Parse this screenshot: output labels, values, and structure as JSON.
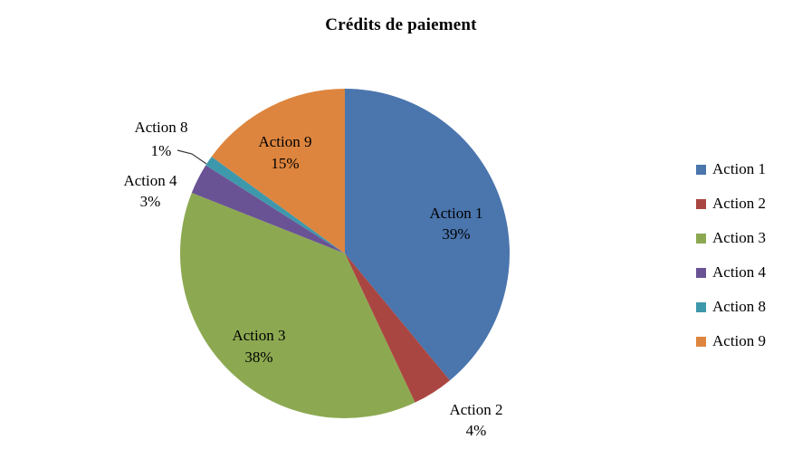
{
  "page": {
    "background": "#ffffff"
  },
  "chart_data": {
    "type": "pie",
    "title": "Crédits de paiement",
    "value_format": "percent",
    "total": 100,
    "start_angle_deg": 0,
    "direction": "clockwise",
    "slices": [
      {
        "label": "Action 1",
        "value": 39,
        "color": "#4A75AD",
        "label_placement": "inside"
      },
      {
        "label": "Action 2",
        "value": 4,
        "color": "#AA4642",
        "label_placement": "outside"
      },
      {
        "label": "Action 3",
        "value": 38,
        "color": "#8CA951",
        "label_placement": "inside"
      },
      {
        "label": "Action 4",
        "value": 3,
        "color": "#6A5394",
        "label_placement": "outside"
      },
      {
        "label": "Action 8",
        "value": 1,
        "color": "#3E98AC",
        "label_placement": "outside-with-leader"
      },
      {
        "label": "Action 9",
        "value": 15,
        "color": "#DD853E",
        "label_placement": "inside"
      }
    ],
    "legend": {
      "position": "right",
      "entries": [
        "Action 1",
        "Action 2",
        "Action 3",
        "Action 4",
        "Action 8",
        "Action 9"
      ]
    }
  }
}
